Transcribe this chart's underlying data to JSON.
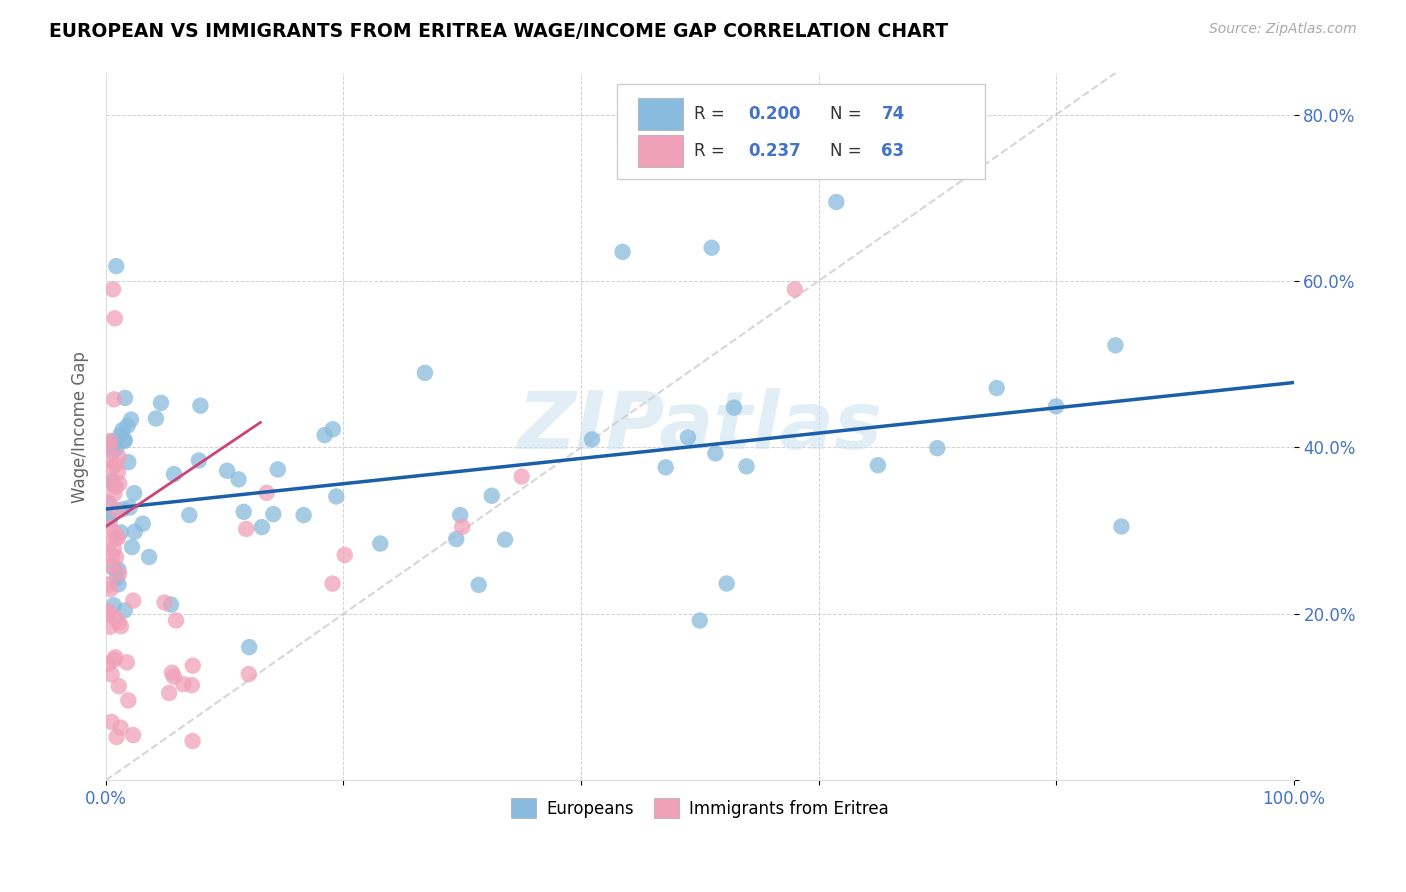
{
  "title": "EUROPEAN VS IMMIGRANTS FROM ERITREA WAGE/INCOME GAP CORRELATION CHART",
  "source": "Source: ZipAtlas.com",
  "ylabel": "Wage/Income Gap",
  "xlim": [
    0.0,
    1.0
  ],
  "ylim": [
    0.0,
    0.85
  ],
  "xtick_positions": [
    0.0,
    0.2,
    0.4,
    0.6,
    0.8,
    1.0
  ],
  "xticklabels": [
    "0.0%",
    "",
    "",
    "",
    "",
    "100.0%"
  ],
  "ytick_positions": [
    0.0,
    0.2,
    0.4,
    0.6,
    0.8
  ],
  "yticklabels": [
    "",
    "20.0%",
    "40.0%",
    "60.0%",
    "80.0%"
  ],
  "blue_color": "#88bbdd",
  "pink_color": "#f0a0b8",
  "trendline_blue_color": "#1a5fa8",
  "trendline_pink_color": "#cc4477",
  "diagonal_color": "#cccccc",
  "tick_color": "#4472c4",
  "watermark_color": "#d0e4f0",
  "legend_r_blue": "0.200",
  "legend_n_blue": "74",
  "legend_r_pink": "0.237",
  "legend_n_pink": "63",
  "watermark_text": "ZIPatlas",
  "legend_bottom": [
    "Europeans",
    "Immigrants from Eritrea"
  ],
  "blue_trendline_x": [
    0.0,
    1.0
  ],
  "blue_trendline_y": [
    0.326,
    0.478
  ],
  "pink_trendline_x": [
    0.0,
    0.13
  ],
  "pink_trendline_y": [
    0.305,
    0.43
  ]
}
